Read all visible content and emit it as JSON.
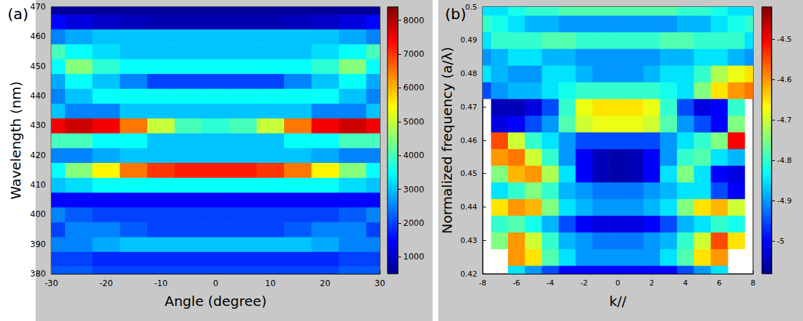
{
  "chart_data": [
    {
      "type": "heatmap",
      "title": "(a)",
      "xlabel": "Angle (degree)",
      "ylabel": "Wavelength (nm)",
      "xlim": [
        -30,
        30
      ],
      "ylim": [
        380,
        470
      ],
      "xticks": [
        -30,
        -20,
        -10,
        0,
        10,
        20,
        30
      ],
      "yticks": [
        380,
        390,
        400,
        410,
        420,
        430,
        440,
        450,
        460,
        470
      ],
      "grid": false,
      "x": [
        -30,
        -25,
        -20,
        -15,
        -10,
        -5,
        0,
        5,
        10,
        15,
        20,
        25,
        30
      ],
      "y": [
        380,
        385,
        390,
        395,
        400,
        405,
        410,
        415,
        420,
        425,
        430,
        435,
        440,
        445,
        450,
        455,
        460,
        465,
        470
      ],
      "values": [
        [
          2200,
          2200,
          2000,
          2000,
          2000,
          2000,
          2000,
          2000,
          2000,
          2000,
          2000,
          2200,
          2200
        ],
        [
          2000,
          2000,
          1800,
          1800,
          1800,
          1800,
          1800,
          1800,
          1800,
          1800,
          1800,
          2000,
          2000
        ],
        [
          2500,
          2500,
          2800,
          3000,
          3000,
          3000,
          3000,
          3000,
          3000,
          3000,
          2800,
          2500,
          2500
        ],
        [
          2000,
          2500,
          2500,
          2200,
          2000,
          2000,
          2000,
          2000,
          2000,
          2200,
          2500,
          2500,
          2000
        ],
        [
          2500,
          2200,
          2000,
          2000,
          2000,
          2000,
          2000,
          2000,
          2000,
          2000,
          2000,
          2200,
          2500
        ],
        [
          1500,
          1500,
          1500,
          1500,
          1500,
          1500,
          1500,
          1500,
          1500,
          1500,
          1500,
          1500,
          1500
        ],
        [
          3000,
          3200,
          3500,
          3500,
          3500,
          3500,
          3500,
          3500,
          3500,
          3500,
          3500,
          3200,
          3000
        ],
        [
          3500,
          4500,
          5500,
          6500,
          7000,
          7200,
          7200,
          7200,
          7000,
          6500,
          5500,
          4500,
          3500
        ],
        [
          2500,
          2500,
          2800,
          3000,
          3000,
          3000,
          3000,
          3000,
          3000,
          3000,
          2800,
          2500,
          2500
        ],
        [
          4000,
          4000,
          3500,
          3500,
          3000,
          3000,
          3000,
          3000,
          3000,
          3500,
          3500,
          4000,
          4000
        ],
        [
          7500,
          7800,
          7500,
          6500,
          5000,
          4000,
          3800,
          4000,
          5000,
          6500,
          7500,
          7800,
          7500
        ],
        [
          3000,
          2500,
          2500,
          3000,
          3000,
          3000,
          3000,
          3000,
          3000,
          3000,
          2500,
          2500,
          3000
        ],
        [
          2500,
          3000,
          3500,
          3500,
          3500,
          3500,
          3500,
          3500,
          3500,
          3500,
          3500,
          3000,
          2500
        ],
        [
          2800,
          3500,
          3000,
          2500,
          2000,
          2000,
          2000,
          2000,
          2000,
          2500,
          3000,
          3500,
          2800
        ],
        [
          3500,
          4500,
          3800,
          3500,
          3500,
          3500,
          3500,
          3500,
          3500,
          3500,
          3800,
          4500,
          3500
        ],
        [
          4000,
          3500,
          3200,
          3000,
          3000,
          3000,
          3000,
          3000,
          3000,
          3000,
          3200,
          3500,
          4000
        ],
        [
          2500,
          2800,
          3000,
          3000,
          3000,
          3000,
          3000,
          3000,
          3000,
          3000,
          3000,
          2800,
          2500
        ],
        [
          1500,
          1200,
          1000,
          900,
          800,
          800,
          800,
          800,
          800,
          900,
          1000,
          1200,
          1500
        ],
        [
          600,
          600,
          600,
          600,
          600,
          600,
          600,
          600,
          600,
          600,
          600,
          600,
          600
        ]
      ],
      "colorbar": {
        "range": [
          500,
          8400
        ],
        "ticks": [
          1000,
          2000,
          3000,
          4000,
          5000,
          6000,
          7000,
          8000
        ]
      }
    },
    {
      "type": "heatmap",
      "title": "(b)",
      "xlabel": "k//",
      "ylabel": "Normalized frequency (a/λ)",
      "xlim": [
        -8,
        8
      ],
      "ylim": [
        0.42,
        0.5
      ],
      "xticks": [
        -8,
        -6,
        -4,
        -2,
        0,
        2,
        4,
        6,
        8
      ],
      "yticks": [
        0.42,
        0.43,
        0.44,
        0.45,
        0.46,
        0.47,
        0.48,
        0.49,
        0.5
      ],
      "grid": false,
      "x": [
        -8,
        -7,
        -6,
        -5,
        -4,
        -3,
        -2,
        -1,
        0,
        1,
        2,
        3,
        4,
        5,
        6,
        7,
        8
      ],
      "y": [
        0.42,
        0.425,
        0.43,
        0.435,
        0.44,
        0.445,
        0.45,
        0.455,
        0.46,
        0.465,
        0.47,
        0.475,
        0.48,
        0.485,
        0.49,
        0.495,
        0.5
      ],
      "values": [
        [
          null,
          null,
          -4.85,
          -4.9,
          -4.95,
          -5.0,
          -5.0,
          -5.0,
          -5.0,
          -5.0,
          -5.0,
          -5.0,
          -4.95,
          -4.9,
          -4.85,
          null,
          null
        ],
        [
          null,
          null,
          -4.6,
          -4.65,
          -4.78,
          -4.85,
          -4.9,
          -4.9,
          -4.9,
          -4.9,
          -4.9,
          -4.85,
          -4.78,
          -4.65,
          -4.6,
          null,
          null
        ],
        [
          null,
          -4.75,
          -4.6,
          -4.7,
          -4.8,
          -4.88,
          -4.9,
          -4.92,
          -4.92,
          -4.92,
          -4.9,
          -4.88,
          -4.8,
          -4.7,
          -4.55,
          -4.65,
          null
        ],
        [
          null,
          -4.8,
          -4.78,
          -4.82,
          -4.88,
          -4.95,
          -5.0,
          -5.02,
          -5.02,
          -5.02,
          -5.0,
          -4.95,
          -4.88,
          -4.85,
          -4.8,
          -4.82,
          null
        ],
        [
          null,
          -4.65,
          -4.6,
          -4.62,
          -4.75,
          -4.85,
          -4.88,
          -4.9,
          -4.9,
          -4.9,
          -4.88,
          -4.85,
          -4.75,
          -4.65,
          -4.62,
          -4.7,
          null
        ],
        [
          null,
          -4.85,
          -4.8,
          -4.75,
          -4.8,
          -4.88,
          -4.9,
          -4.92,
          -4.92,
          -4.92,
          -4.9,
          -4.88,
          -4.85,
          -4.85,
          -4.95,
          -5.0,
          null
        ],
        [
          null,
          -4.75,
          -4.62,
          -4.6,
          -4.72,
          -4.85,
          -5.0,
          -5.05,
          -5.06,
          -5.05,
          -5.0,
          -4.85,
          -4.75,
          -4.85,
          -5.0,
          -5.02,
          null
        ],
        [
          null,
          -4.6,
          -4.58,
          -4.7,
          -4.8,
          -4.9,
          -5.0,
          -5.05,
          -5.06,
          -5.05,
          -5.0,
          -4.9,
          -4.8,
          -4.78,
          -4.85,
          -4.88,
          null
        ],
        [
          null,
          -4.55,
          -4.7,
          -4.8,
          -4.85,
          -4.9,
          -4.95,
          -4.95,
          -4.95,
          -4.95,
          -4.95,
          -4.9,
          -4.85,
          -4.8,
          -4.75,
          -4.5,
          null
        ],
        [
          null,
          -5.02,
          -5.0,
          -4.95,
          -4.9,
          -4.78,
          -4.7,
          -4.68,
          -4.68,
          -4.68,
          -4.7,
          -4.78,
          -4.9,
          -4.95,
          -5.0,
          -4.75,
          null
        ],
        [
          null,
          -5.05,
          -5.05,
          -5.02,
          -4.95,
          -4.8,
          -4.68,
          -4.65,
          -4.65,
          -4.65,
          -4.68,
          -4.8,
          -4.95,
          -5.02,
          -5.0,
          -4.8,
          null
        ],
        [
          -4.95,
          -4.9,
          -4.88,
          -4.88,
          -4.85,
          -4.82,
          -4.8,
          -4.8,
          -4.8,
          -4.8,
          -4.8,
          -4.82,
          -4.85,
          -4.75,
          -4.65,
          -4.6,
          -4.58
        ],
        [
          -4.85,
          -4.88,
          -4.9,
          -4.9,
          -4.85,
          -4.85,
          -4.88,
          -4.9,
          -4.9,
          -4.9,
          -4.88,
          -4.85,
          -4.85,
          -4.8,
          -4.72,
          -4.68,
          -4.65
        ],
        [
          -4.9,
          -4.88,
          -4.85,
          -4.85,
          -4.88,
          -4.88,
          -4.9,
          -4.9,
          -4.9,
          -4.9,
          -4.9,
          -4.88,
          -4.88,
          -4.85,
          -4.85,
          -4.88,
          -4.9
        ],
        [
          -4.85,
          -4.8,
          -4.8,
          -4.8,
          -4.78,
          -4.78,
          -4.8,
          -4.8,
          -4.8,
          -4.8,
          -4.8,
          -4.78,
          -4.78,
          -4.8,
          -4.8,
          -4.8,
          -4.85
        ],
        [
          -4.8,
          -4.82,
          -4.85,
          -4.88,
          -4.88,
          -4.9,
          -4.9,
          -4.9,
          -4.9,
          -4.9,
          -4.9,
          -4.9,
          -4.88,
          -4.88,
          -4.85,
          -4.82,
          -4.8
        ],
        [
          -4.85,
          -4.85,
          -4.82,
          -4.8,
          -4.8,
          -4.78,
          -4.78,
          -4.78,
          -4.78,
          -4.78,
          -4.78,
          -4.78,
          -4.8,
          -4.8,
          -4.82,
          -4.85,
          -4.85
        ]
      ],
      "colorbar": {
        "range": [
          -5.08,
          -4.42
        ],
        "ticks": [
          -5,
          -4.9,
          -4.8,
          -4.7,
          -4.6,
          -4.5
        ]
      }
    }
  ]
}
